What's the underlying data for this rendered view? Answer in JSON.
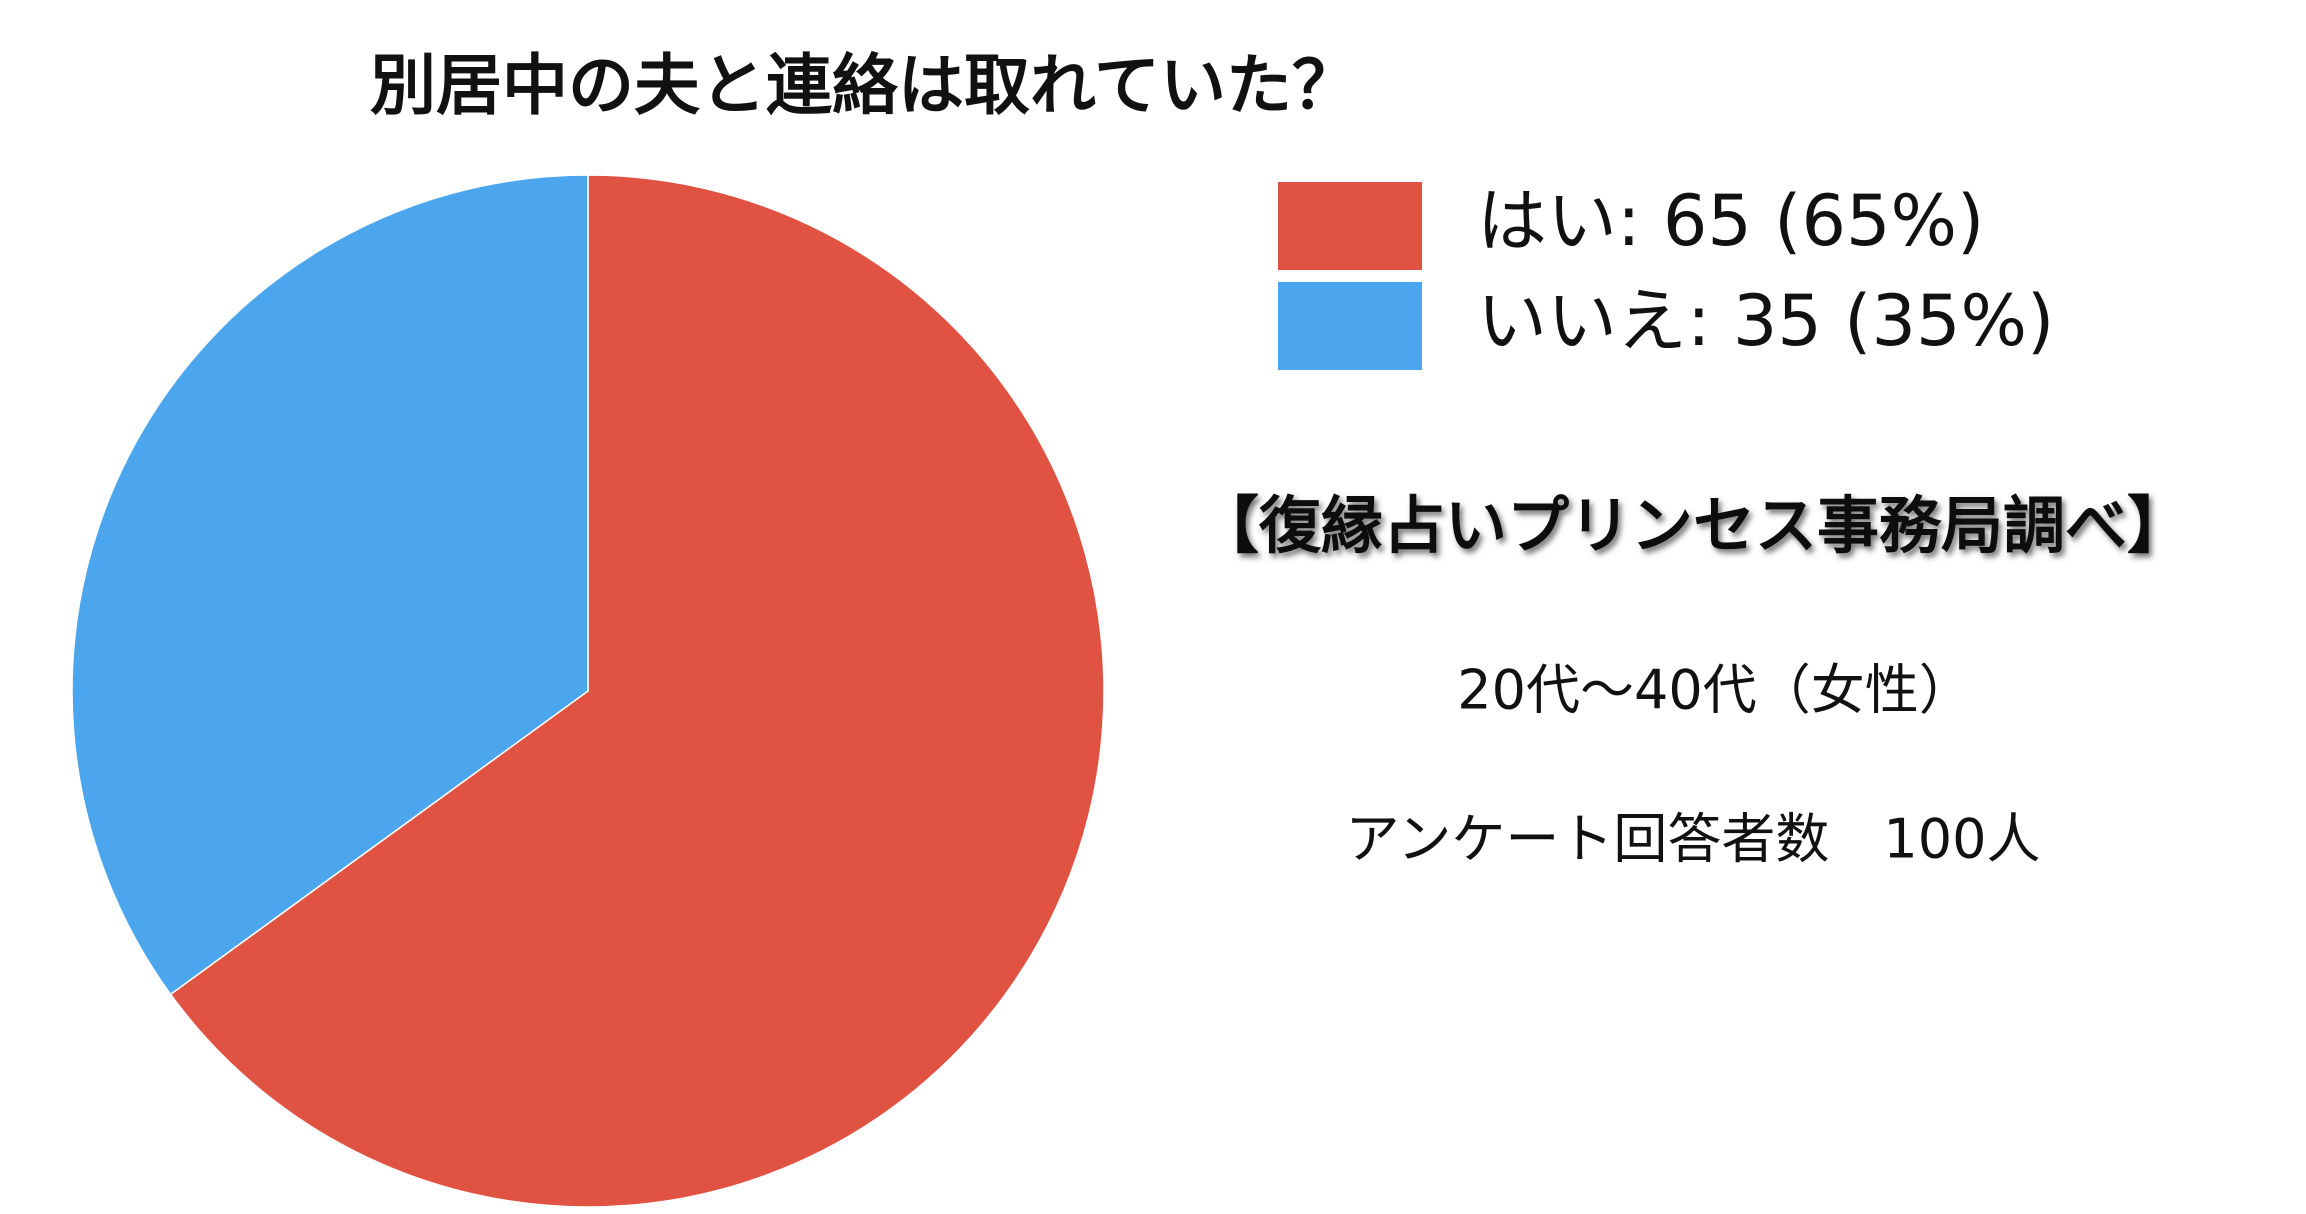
{
  "chart_data": {
    "type": "pie",
    "title": "別居中の夫と連絡は取れていた？",
    "categories": [
      "はい: 65 (65%)",
      "いいえ: 35 (35%)"
    ],
    "values": [
      65,
      35
    ],
    "colors": [
      "#e05343",
      "#4ba6ee"
    ],
    "annotations": [
      "【復縁占いプリンセス事務局調べ】",
      "20代～40代（女性）",
      "アンケート回答者数　100人"
    ]
  }
}
